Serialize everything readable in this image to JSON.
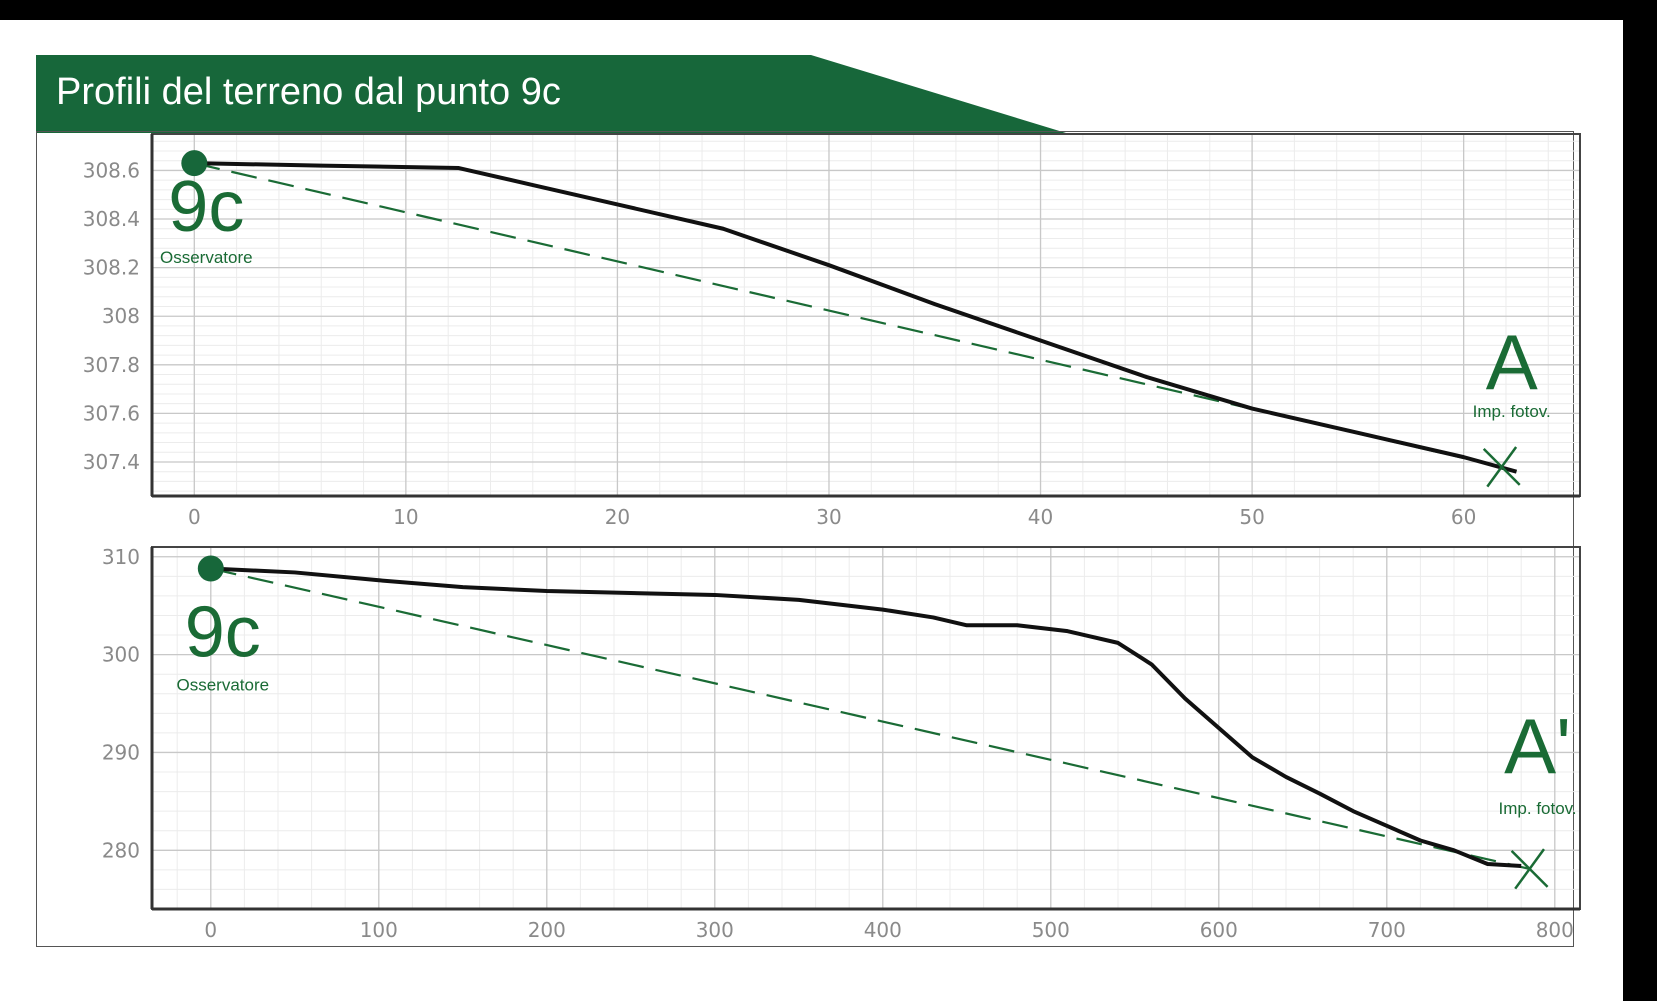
{
  "title": "Profili del terreno dal punto 9c",
  "colors": {
    "accent": "#17673a",
    "profile": "#111111",
    "sightline": "#1a6b35"
  },
  "chart_data": [
    {
      "type": "line",
      "xlim": [
        -2,
        65.5
      ],
      "ylim": [
        307.26,
        308.75
      ],
      "xticks": [
        0,
        10,
        20,
        30,
        40,
        50,
        60
      ],
      "yticks": [
        307.4,
        307.6,
        307.8,
        308,
        308.2,
        308.4,
        308.6
      ],
      "xtick_labels": [
        "0",
        "10",
        "20",
        "30",
        "40",
        "50",
        "60"
      ],
      "ytick_labels": [
        "307.4",
        "307.6",
        "307.8",
        "308",
        "308.2",
        "308.4",
        "308.6"
      ],
      "grid": true,
      "series": [
        {
          "x": [
            0,
            6,
            12.5,
            16,
            20,
            25,
            30,
            35,
            40,
            45,
            50,
            55,
            60,
            62.5
          ],
          "y": [
            308.63,
            308.62,
            308.61,
            308.54,
            308.46,
            308.36,
            308.21,
            308.05,
            307.9,
            307.75,
            307.62,
            307.52,
            307.42,
            307.36
          ]
        }
      ],
      "sightline": {
        "x": [
          0,
          61.8
        ],
        "y": [
          308.63,
          307.38
        ]
      },
      "observer": {
        "x": 0,
        "y": 308.63,
        "label": "9c",
        "sublabel": "Osservatore"
      },
      "target": {
        "x": 61.8,
        "y": 307.38,
        "label": "A",
        "sublabel": "Imp. fotov."
      }
    },
    {
      "type": "line",
      "xlim": [
        -35,
        815
      ],
      "ylim": [
        274,
        311
      ],
      "xticks": [
        0,
        100,
        200,
        300,
        400,
        500,
        600,
        700,
        800
      ],
      "yticks": [
        280,
        290,
        300,
        310
      ],
      "xtick_labels": [
        "0",
        "100",
        "200",
        "300",
        "400",
        "500",
        "600",
        "700",
        "800"
      ],
      "ytick_labels": [
        "280",
        "290",
        "300",
        "310"
      ],
      "grid": true,
      "series": [
        {
          "x": [
            0,
            50,
            100,
            150,
            200,
            250,
            300,
            350,
            400,
            430,
            450,
            480,
            510,
            540,
            560,
            580,
            600,
            620,
            640,
            660,
            680,
            700,
            720,
            740,
            760,
            780
          ],
          "y": [
            308.8,
            308.4,
            307.6,
            306.9,
            306.5,
            306.3,
            306.1,
            305.6,
            304.6,
            303.8,
            303.0,
            303.0,
            302.4,
            301.2,
            299.0,
            295.5,
            292.5,
            289.5,
            287.5,
            285.8,
            284.0,
            282.5,
            281.0,
            280.0,
            278.6,
            278.4
          ]
        }
      ],
      "sightline": {
        "x": [
          0,
          785
        ],
        "y": [
          308.8,
          278.1
        ]
      },
      "observer": {
        "x": 0,
        "y": 308.8,
        "label": "9c",
        "sublabel": "Osservatore"
      },
      "target": {
        "x": 785,
        "y": 278.1,
        "label": "A'",
        "sublabel": "Imp. fotov."
      }
    }
  ]
}
